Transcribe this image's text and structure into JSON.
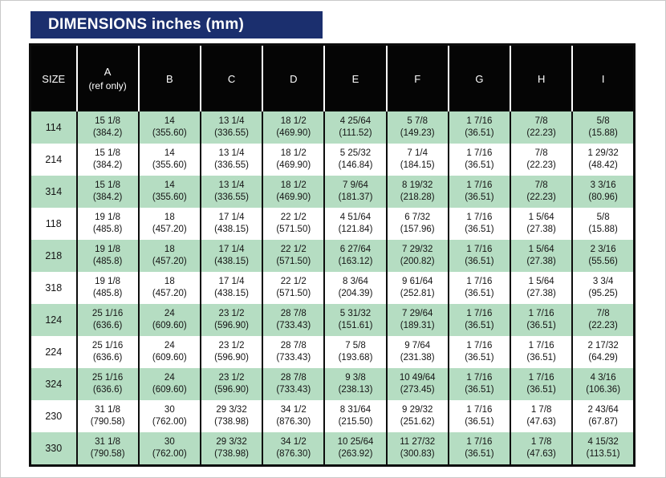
{
  "title": "DIMENSIONS inches (mm)",
  "colors": {
    "title_bar_bg": "#1b2f6e",
    "title_bar_text": "#ffffff",
    "table_header_bg": "#050505",
    "table_header_text": "#ffffff",
    "row_green": "#b5ddc2",
    "row_white": "#ffffff",
    "border_line": "#0d0d0d"
  },
  "table": {
    "columns": [
      {
        "key": "SIZE",
        "label": "SIZE",
        "sublabel": ""
      },
      {
        "key": "A",
        "label": "A",
        "sublabel": "(ref only)"
      },
      {
        "key": "B",
        "label": "B",
        "sublabel": ""
      },
      {
        "key": "C",
        "label": "C",
        "sublabel": ""
      },
      {
        "key": "D",
        "label": "D",
        "sublabel": ""
      },
      {
        "key": "E",
        "label": "E",
        "sublabel": ""
      },
      {
        "key": "F",
        "label": "F",
        "sublabel": ""
      },
      {
        "key": "G",
        "label": "G",
        "sublabel": ""
      },
      {
        "key": "H",
        "label": "H",
        "sublabel": ""
      },
      {
        "key": "I",
        "label": "I",
        "sublabel": ""
      }
    ],
    "rows": [
      {
        "size": "114",
        "shade": "green",
        "cells": [
          [
            "15 1/8",
            "(384.2)"
          ],
          [
            "14",
            "(355.60)"
          ],
          [
            "13 1/4",
            "(336.55)"
          ],
          [
            "18 1/2",
            "(469.90)"
          ],
          [
            "4 25/64",
            "(111.52)"
          ],
          [
            "5 7/8",
            "(149.23)"
          ],
          [
            "1 7/16",
            "(36.51)"
          ],
          [
            "7/8",
            "(22.23)"
          ],
          [
            "5/8",
            "(15.88)"
          ]
        ]
      },
      {
        "size": "214",
        "shade": "white",
        "cells": [
          [
            "15 1/8",
            "(384.2)"
          ],
          [
            "14",
            "(355.60)"
          ],
          [
            "13 1/4",
            "(336.55)"
          ],
          [
            "18 1/2",
            "(469.90)"
          ],
          [
            "5 25/32",
            "(146.84)"
          ],
          [
            "7 1/4",
            "(184.15)"
          ],
          [
            "1 7/16",
            "(36.51)"
          ],
          [
            "7/8",
            "(22.23)"
          ],
          [
            "1 29/32",
            "(48.42)"
          ]
        ]
      },
      {
        "size": "314",
        "shade": "green",
        "cells": [
          [
            "15 1/8",
            "(384.2)"
          ],
          [
            "14",
            "(355.60)"
          ],
          [
            "13 1/4",
            "(336.55)"
          ],
          [
            "18 1/2",
            "(469.90)"
          ],
          [
            "7 9/64",
            "(181.37)"
          ],
          [
            "8 19/32",
            "(218.28)"
          ],
          [
            "1 7/16",
            "(36.51)"
          ],
          [
            "7/8",
            "(22.23)"
          ],
          [
            "3 3/16",
            "(80.96)"
          ]
        ]
      },
      {
        "size": "118",
        "shade": "white",
        "cells": [
          [
            "19 1/8",
            "(485.8)"
          ],
          [
            "18",
            "(457.20)"
          ],
          [
            "17 1/4",
            "(438.15)"
          ],
          [
            "22 1/2",
            "(571.50)"
          ],
          [
            "4 51/64",
            "(121.84)"
          ],
          [
            "6 7/32",
            "(157.96)"
          ],
          [
            "1 7/16",
            "(36.51)"
          ],
          [
            "1 5/64",
            "(27.38)"
          ],
          [
            "5/8",
            "(15.88)"
          ]
        ]
      },
      {
        "size": "218",
        "shade": "green",
        "cells": [
          [
            "19 1/8",
            "(485.8)"
          ],
          [
            "18",
            "(457.20)"
          ],
          [
            "17 1/4",
            "(438.15)"
          ],
          [
            "22 1/2",
            "(571.50)"
          ],
          [
            "6 27/64",
            "(163.12)"
          ],
          [
            "7 29/32",
            "(200.82)"
          ],
          [
            "1 7/16",
            "(36.51)"
          ],
          [
            "1 5/64",
            "(27.38)"
          ],
          [
            "2 3/16",
            "(55.56)"
          ]
        ]
      },
      {
        "size": "318",
        "shade": "white",
        "cells": [
          [
            "19 1/8",
            "(485.8)"
          ],
          [
            "18",
            "(457.20)"
          ],
          [
            "17 1/4",
            "(438.15)"
          ],
          [
            "22 1/2",
            "(571.50)"
          ],
          [
            "8 3/64",
            "(204.39)"
          ],
          [
            "9 61/64",
            "(252.81)"
          ],
          [
            "1 7/16",
            "(36.51)"
          ],
          [
            "1 5/64",
            "(27.38)"
          ],
          [
            "3 3/4",
            "(95.25)"
          ]
        ]
      },
      {
        "size": "124",
        "shade": "green",
        "cells": [
          [
            "25 1/16",
            "(636.6)"
          ],
          [
            "24",
            "(609.60)"
          ],
          [
            "23 1/2",
            "(596.90)"
          ],
          [
            "28 7/8",
            "(733.43)"
          ],
          [
            "5 31/32",
            "(151.61)"
          ],
          [
            "7 29/64",
            "(189.31)"
          ],
          [
            "1 7/16",
            "(36.51)"
          ],
          [
            "1 7/16",
            "(36.51)"
          ],
          [
            "7/8",
            "(22.23)"
          ]
        ]
      },
      {
        "size": "224",
        "shade": "white",
        "cells": [
          [
            "25 1/16",
            "(636.6)"
          ],
          [
            "24",
            "(609.60)"
          ],
          [
            "23 1/2",
            "(596.90)"
          ],
          [
            "28 7/8",
            "(733.43)"
          ],
          [
            "7 5/8",
            "(193.68)"
          ],
          [
            "9 7/64",
            "(231.38)"
          ],
          [
            "1 7/16",
            "(36.51)"
          ],
          [
            "1 7/16",
            "(36.51)"
          ],
          [
            "2 17/32",
            "(64.29)"
          ]
        ]
      },
      {
        "size": "324",
        "shade": "green",
        "cells": [
          [
            "25 1/16",
            "(636.6)"
          ],
          [
            "24",
            "(609.60)"
          ],
          [
            "23 1/2",
            "(596.90)"
          ],
          [
            "28 7/8",
            "(733.43)"
          ],
          [
            "9 3/8",
            "(238.13)"
          ],
          [
            "10 49/64",
            "(273.45)"
          ],
          [
            "1 7/16",
            "(36.51)"
          ],
          [
            "1 7/16",
            "(36.51)"
          ],
          [
            "4 3/16",
            "(106.36)"
          ]
        ]
      },
      {
        "size": "230",
        "shade": "white",
        "cells": [
          [
            "31 1/8",
            "(790.58)"
          ],
          [
            "30",
            "(762.00)"
          ],
          [
            "29 3/32",
            "(738.98)"
          ],
          [
            "34 1/2",
            "(876.30)"
          ],
          [
            "8 31/64",
            "(215.50)"
          ],
          [
            "9 29/32",
            "(251.62)"
          ],
          [
            "1 7/16",
            "(36.51)"
          ],
          [
            "1 7/8",
            "(47.63)"
          ],
          [
            "2 43/64",
            "(67.87)"
          ]
        ]
      },
      {
        "size": "330",
        "shade": "green",
        "cells": [
          [
            "31 1/8",
            "(790.58)"
          ],
          [
            "30",
            "(762.00)"
          ],
          [
            "29 3/32",
            "(738.98)"
          ],
          [
            "34 1/2",
            "(876.30)"
          ],
          [
            "10 25/64",
            "(263.92)"
          ],
          [
            "11 27/32",
            "(300.83)"
          ],
          [
            "1 7/16",
            "(36.51)"
          ],
          [
            "1 7/8",
            "(47.63)"
          ],
          [
            "4 15/32",
            "(113.51)"
          ]
        ]
      }
    ]
  }
}
